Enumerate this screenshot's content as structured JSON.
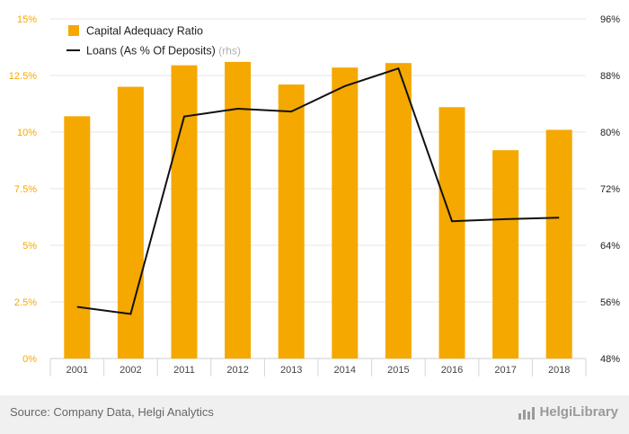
{
  "chart_data": {
    "type": "bar",
    "categories": [
      "2001",
      "2002",
      "2011",
      "2012",
      "2013",
      "2014",
      "2015",
      "2016",
      "2017",
      "2018"
    ],
    "series": [
      {
        "name": "Capital Adequacy Ratio",
        "type": "bar",
        "axis": "left",
        "color": "#f5a800",
        "values": [
          10.7,
          12.0,
          12.95,
          13.1,
          12.1,
          12.85,
          13.05,
          11.1,
          9.2,
          10.1
        ]
      },
      {
        "name": "Loans (As % Of Deposits)",
        "name_suffix": "(rhs)",
        "type": "line",
        "axis": "right",
        "color": "#111111",
        "values": [
          55.3,
          54.3,
          82.2,
          83.3,
          82.9,
          86.5,
          89.0,
          67.4,
          67.7,
          67.9
        ]
      }
    ],
    "y_left": {
      "range": [
        0,
        15
      ],
      "tick_values": [
        0,
        2.5,
        5,
        7.5,
        10,
        12.5,
        15
      ],
      "tick_labels": [
        "0%",
        "2.5%",
        "5%",
        "7.5%",
        "10%",
        "12.5%",
        "15%"
      ]
    },
    "y_right": {
      "range": [
        48,
        96
      ],
      "tick_values": [
        48,
        56,
        64,
        72,
        80,
        88,
        96
      ],
      "tick_labels": [
        "48%",
        "56%",
        "64%",
        "72%",
        "80%",
        "88%",
        "96%"
      ]
    },
    "grid": "horizontal",
    "legend_position": "top-left"
  },
  "footer": {
    "source": "Source: Company Data, Helgi Analytics",
    "brand": "HelgiLibrary",
    "brand_icon": "bar-chart-icon"
  },
  "colors": {
    "bar": "#f5a800",
    "line": "#111111",
    "grid": "#e6e6e6",
    "footer_bg": "#f0f0f0"
  }
}
